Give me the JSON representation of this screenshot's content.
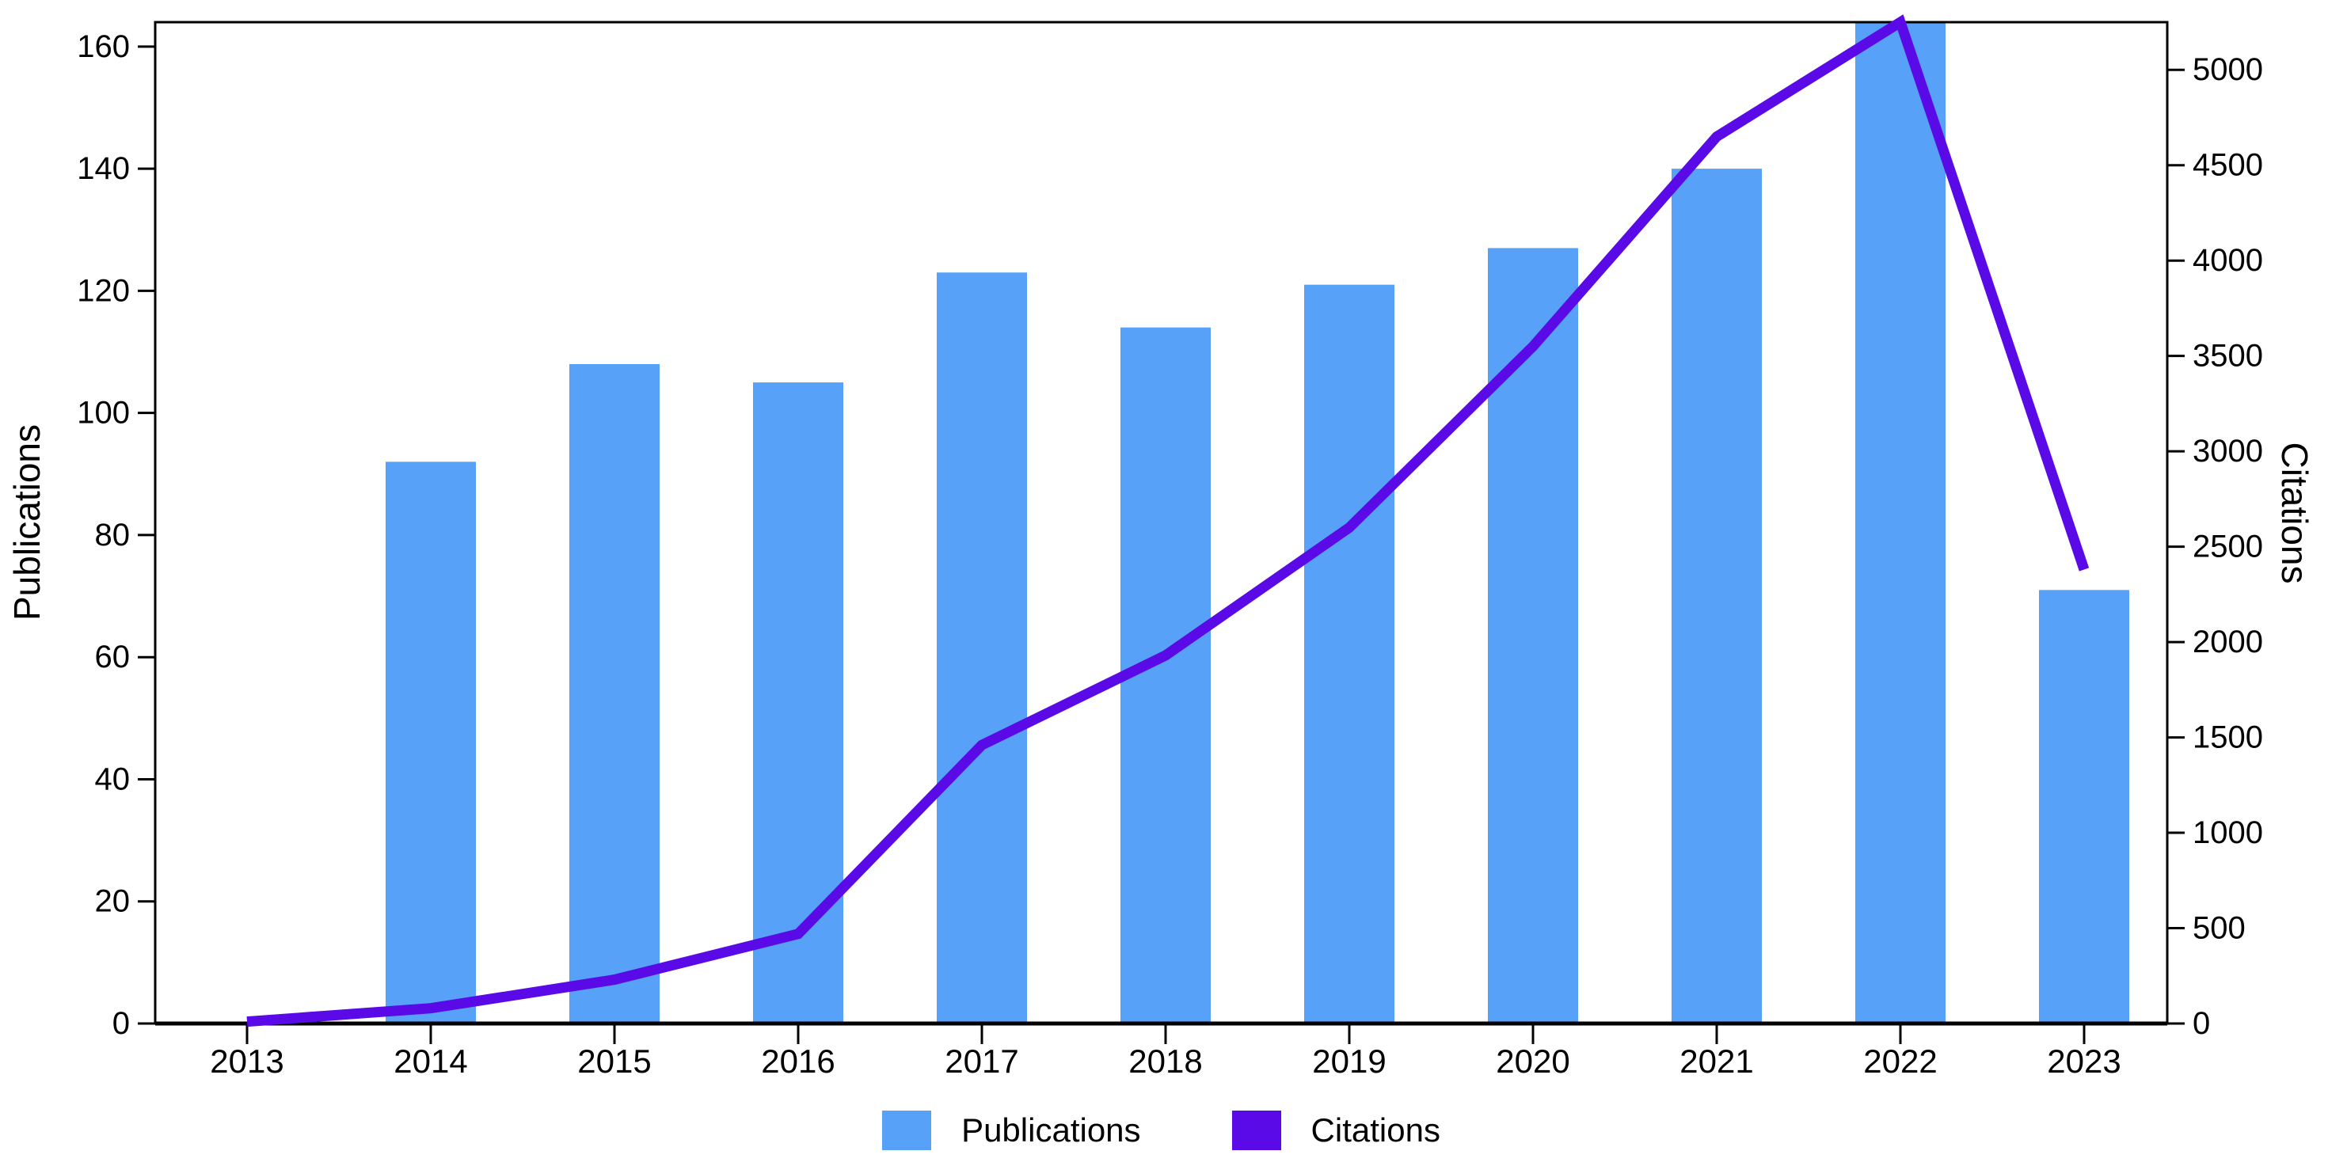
{
  "chart_data": {
    "type": "combo",
    "categories": [
      "2013",
      "2014",
      "2015",
      "2016",
      "2017",
      "2018",
      "2019",
      "2020",
      "2021",
      "2022",
      "2023"
    ],
    "series": [
      {
        "name": "Publications",
        "chart_type": "bar",
        "axis": "left",
        "color": "#57A1F8",
        "values": [
          0,
          92,
          108,
          105,
          123,
          114,
          121,
          127,
          140,
          164,
          71
        ]
      },
      {
        "name": "Citations",
        "chart_type": "line",
        "axis": "right",
        "color": "#5A0AE6",
        "values": [
          10,
          80,
          230,
          470,
          1460,
          1930,
          2600,
          3550,
          4650,
          5250,
          2380
        ]
      }
    ],
    "left_axis": {
      "label": "Publications",
      "min": 0,
      "max": 164,
      "ticks": [
        0,
        20,
        40,
        60,
        80,
        100,
        120,
        140,
        160
      ]
    },
    "right_axis": {
      "label": "Citations",
      "min": 0,
      "max": 5250,
      "ticks": [
        0,
        500,
        1000,
        1500,
        2000,
        2500,
        3000,
        3500,
        4000,
        4500,
        5000
      ]
    },
    "x_axis": {
      "ticks": [
        "2013",
        "2014",
        "2015",
        "2016",
        "2017",
        "2018",
        "2019",
        "2020",
        "2021",
        "2022",
        "2023"
      ]
    },
    "legend": {
      "position": "bottom-center",
      "items": [
        {
          "label": "Publications",
          "color": "#57A1F8"
        },
        {
          "label": "Citations",
          "color": "#5A0AE6"
        }
      ]
    },
    "grid": false,
    "background": "#ffffff",
    "spine_color": "#000000"
  }
}
